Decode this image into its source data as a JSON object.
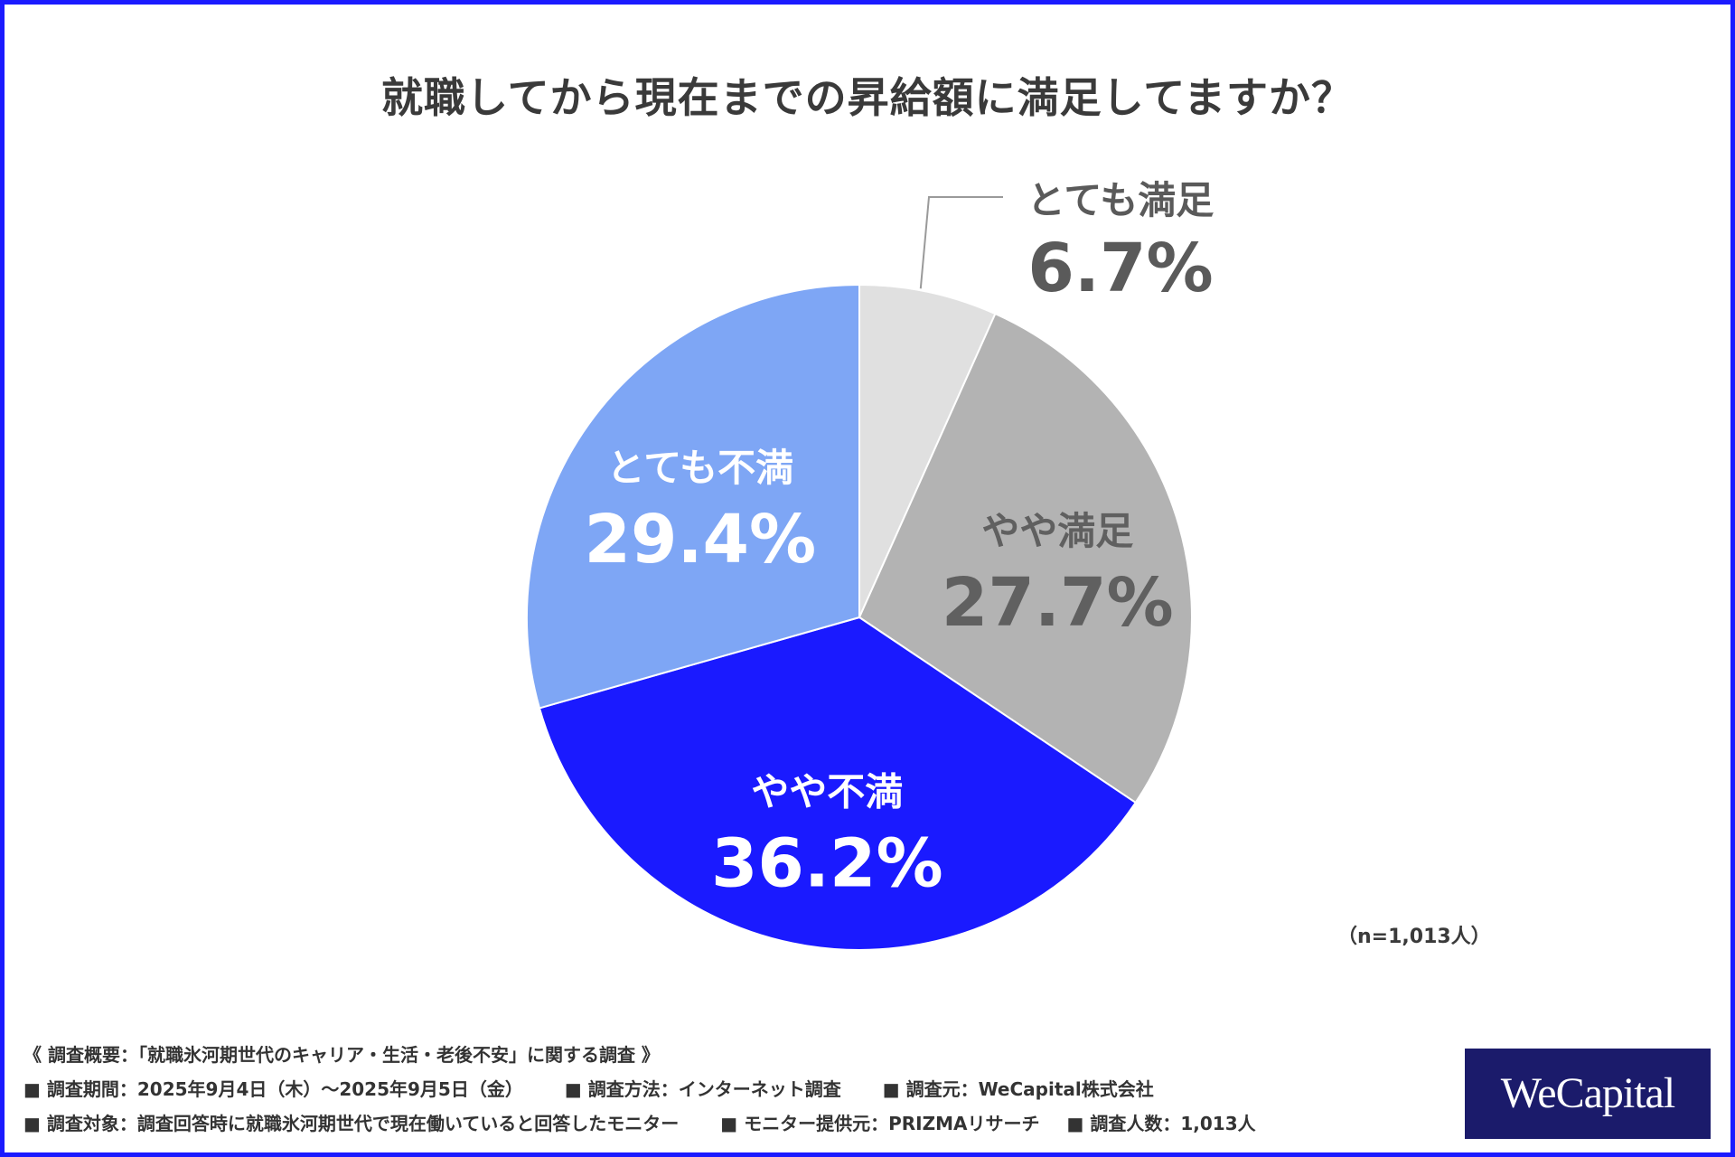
{
  "title": "就職してから現在までの昇給額に満足してますか？",
  "chart_data": {
    "type": "pie",
    "title": "就職してから現在までの昇給額に満足してますか？",
    "categories": [
      "とても満足",
      "やや満足",
      "やや不満",
      "とても不満"
    ],
    "values": [
      6.7,
      27.7,
      36.2,
      29.4
    ],
    "value_labels": [
      "6.7%",
      "27.7%",
      "36.2%",
      "29.4%"
    ],
    "colors": [
      "#e0e0e0",
      "#b3b3b3",
      "#1a1aff",
      "#7ea6f5"
    ],
    "label_colors": [
      "#5a5a5a",
      "#606060",
      "#ffffff",
      "#ffffff"
    ]
  },
  "sample_size": "（n=1,013人）",
  "footer": {
    "overview": "《 調査概要：「就職氷河期世代のキャリア・生活・老後不安」に関する調査 》",
    "line2": [
      "■ 調査期間：2025年9月4日（木）〜2025年9月5日（金）",
      "■ 調査方法：インターネット調査",
      "■ 調査元：WeCapital株式会社"
    ],
    "line3": [
      "■ 調査対象：調査回答時に就職氷河期世代で現在働いていると回答したモニター",
      "■ モニター提供元：PRIZMAリサーチ",
      "■ 調査人数：1,013人"
    ]
  },
  "logo": "WeCapital",
  "colors": {
    "frame": "#1a1aff",
    "logo_bg": "#1b1b6b"
  }
}
